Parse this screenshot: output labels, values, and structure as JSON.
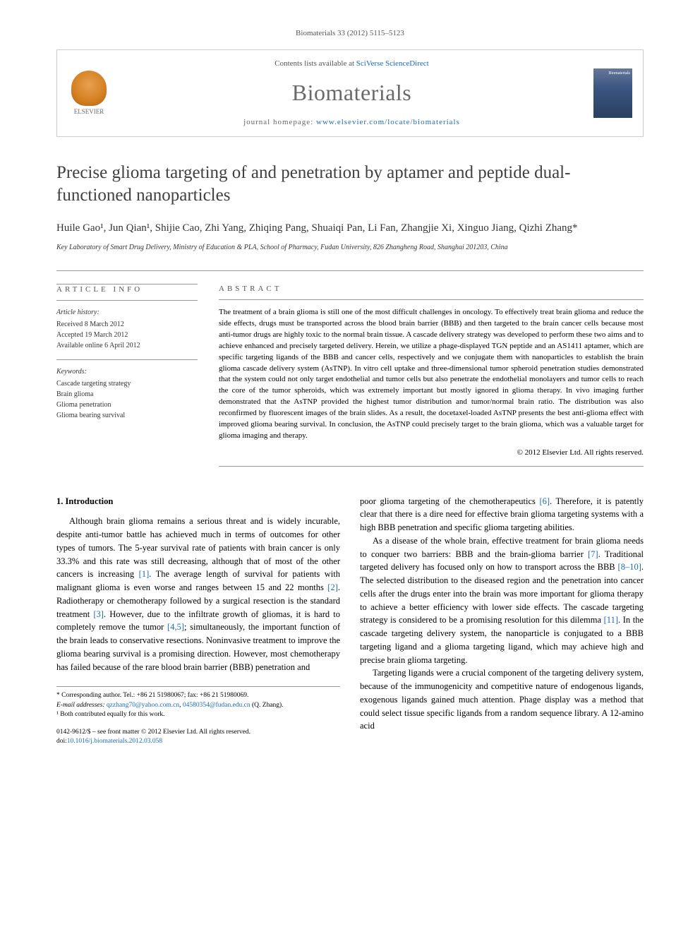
{
  "journal_ref": "Biomaterials 33 (2012) 5115–5123",
  "header": {
    "contents_prefix": "Contents lists available at ",
    "contents_link": "SciVerse ScienceDirect",
    "journal_name": "Biomaterials",
    "homepage_prefix": "journal homepage: ",
    "homepage_url": "www.elsevier.com/locate/biomaterials",
    "publisher": "ELSEVIER",
    "cover_label": "Biomaterials"
  },
  "title": "Precise glioma targeting of and penetration by aptamer and peptide dual-functioned nanoparticles",
  "authors": "Huile Gao¹, Jun Qian¹, Shijie Cao, Zhi Yang, Zhiqing Pang, Shuaiqi Pan, Li Fan, Zhangjie Xi, Xinguo Jiang, Qizhi Zhang*",
  "affiliation": "Key Laboratory of Smart Drug Delivery, Ministry of Education & PLA, School of Pharmacy, Fudan University, 826 Zhangheng Road, Shanghai 201203, China",
  "article_info": {
    "heading": "ARTICLE INFO",
    "history_label": "Article history:",
    "received": "Received 8 March 2012",
    "accepted": "Accepted 19 March 2012",
    "available": "Available online 6 April 2012",
    "keywords_label": "Keywords:",
    "keywords": [
      "Cascade targeting strategy",
      "Brain glioma",
      "Glioma penetration",
      "Glioma bearing survival"
    ]
  },
  "abstract": {
    "heading": "ABSTRACT",
    "text": "The treatment of a brain glioma is still one of the most difficult challenges in oncology. To effectively treat brain glioma and reduce the side effects, drugs must be transported across the blood brain barrier (BBB) and then targeted to the brain cancer cells because most anti-tumor drugs are highly toxic to the normal brain tissue. A cascade delivery strategy was developed to perform these two aims and to achieve enhanced and precisely targeted delivery. Herein, we utilize a phage-displayed TGN peptide and an AS1411 aptamer, which are specific targeting ligands of the BBB and cancer cells, respectively and we conjugate them with nanoparticles to establish the brain glioma cascade delivery system (AsTNP). In vitro cell uptake and three-dimensional tumor spheroid penetration studies demonstrated that the system could not only target endothelial and tumor cells but also penetrate the endothelial monolayers and tumor cells to reach the core of the tumor spheroids, which was extremely important but mostly ignored in glioma therapy. In vivo imaging further demonstrated that the AsTNP provided the highest tumor distribution and tumor/normal brain ratio. The distribution was also reconfirmed by fluorescent images of the brain slides. As a result, the docetaxel-loaded AsTNP presents the best anti-glioma effect with improved glioma bearing survival. In conclusion, the AsTNP could precisely target to the brain glioma, which was a valuable target for glioma imaging and therapy.",
    "copyright": "© 2012 Elsevier Ltd. All rights reserved."
  },
  "body": {
    "section_heading": "1. Introduction",
    "col1_p1": "Although brain glioma remains a serious threat and is widely incurable, despite anti-tumor battle has achieved much in terms of outcomes for other types of tumors. The 5-year survival rate of patients with brain cancer is only 33.3% and this rate was still decreasing, although that of most of the other cancers is increasing [1]. The average length of survival for patients with malignant glioma is even worse and ranges between 15 and 22 months [2]. Radiotherapy or chemotherapy followed by a surgical resection is the standard treatment [3]. However, due to the infiltrate growth of gliomas, it is hard to completely remove the tumor [4,5]; simultaneously, the important function of the brain leads to conservative resections. Noninvasive treatment to improve the glioma bearing survival is a promising direction. However, most chemotherapy has failed because of the rare blood brain barrier (BBB) penetration and",
    "col2_p1": "poor glioma targeting of the chemotherapeutics [6]. Therefore, it is patently clear that there is a dire need for effective brain glioma targeting systems with a high BBB penetration and specific glioma targeting abilities.",
    "col2_p2": "As a disease of the whole brain, effective treatment for brain glioma needs to conquer two barriers: BBB and the brain-glioma barrier [7]. Traditional targeted delivery has focused only on how to transport across the BBB [8–10]. The selected distribution to the diseased region and the penetration into cancer cells after the drugs enter into the brain was more important for glioma therapy to achieve a better efficiency with lower side effects. The cascade targeting strategy is considered to be a promising resolution for this dilemma [11]. In the cascade targeting delivery system, the nanoparticle is conjugated to a BBB targeting ligand and a glioma targeting ligand, which may achieve high and precise brain glioma targeting.",
    "col2_p3": "Targeting ligands were a crucial component of the targeting delivery system, because of the immunogenicity and competitive nature of endogenous ligands, exogenous ligands gained much attention. Phage display was a method that could select tissue specific ligands from a random sequence library. A 12-amino acid"
  },
  "footnotes": {
    "corresponding": "* Corresponding author. Tel.: +86 21 51980067; fax: +86 21 51980069.",
    "email_label": "E-mail addresses: ",
    "email1": "qzzhang70@yahoo.com.cn",
    "email2": "04580354@fudan.edu.cn",
    "email_suffix": "(Q. Zhang).",
    "equal": "¹ Both contributed equally for this work."
  },
  "doi": {
    "issn": "0142-9612/$ – see front matter © 2012 Elsevier Ltd. All rights reserved.",
    "doi_label": "doi:",
    "doi_value": "10.1016/j.biomaterials.2012.03.058"
  },
  "colors": {
    "link": "#1a6bb8",
    "text": "#000000",
    "gray_text": "#555555",
    "border": "#999999",
    "journal_name": "#6a6a6a"
  }
}
